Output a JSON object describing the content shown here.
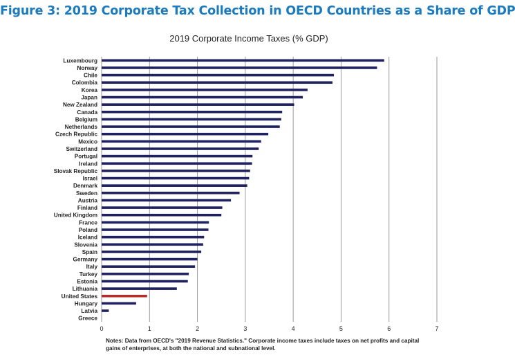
{
  "figure_title": "Figure 3: 2019 Corporate Tax Collection in OECD Countries as a Share of GDP",
  "chart_data": {
    "type": "bar",
    "orientation": "horizontal",
    "title": "2019 Corporate Income Taxes (% GDP)",
    "xlabel": "",
    "ylabel": "",
    "xlim": [
      0,
      7
    ],
    "x_ticks": [
      "0",
      "1",
      "2",
      "3",
      "4",
      "5",
      "6",
      "7"
    ],
    "grid": "vertical",
    "categories": [
      "Luxembourg",
      "Norway",
      "Chile",
      "Colombia",
      "Korea",
      "Japan",
      "New Zealand",
      "Canada",
      "Belgium",
      "Netherlands",
      "Czech Republic",
      "Mexico",
      "Switzerland",
      "Portugal",
      "Ireland",
      "Slovak Republic",
      "Israel",
      "Denmark",
      "Sweden",
      "Austria",
      "Finland",
      "United Kingdom",
      "France",
      "Poland",
      "Iceland",
      "Slovenia",
      "Spain",
      "Germany",
      "Italy",
      "Turkey",
      "Estonia",
      "Lithuania",
      "United States",
      "Hungary",
      "Latvia",
      "Greece"
    ],
    "values": [
      5.9,
      5.75,
      4.85,
      4.82,
      4.3,
      4.2,
      4.02,
      3.77,
      3.75,
      3.72,
      3.48,
      3.33,
      3.28,
      3.15,
      3.14,
      3.1,
      3.08,
      3.04,
      2.88,
      2.7,
      2.52,
      2.5,
      2.24,
      2.23,
      2.14,
      2.12,
      2.08,
      2.0,
      1.95,
      1.82,
      1.8,
      1.57,
      0.95,
      0.72,
      0.15,
      0.0
    ],
    "colors": {
      "default": "#1f2160",
      "highlight": "#b42d2a"
    },
    "highlight_category": "United States"
  },
  "notes": {
    "label": "Notes:",
    "text": " Data from OECD's \"2019 Revenue Statistics.\" Corporate income taxes include taxes on net profits and capital gains of enterprises, at both the national and subnational level."
  }
}
